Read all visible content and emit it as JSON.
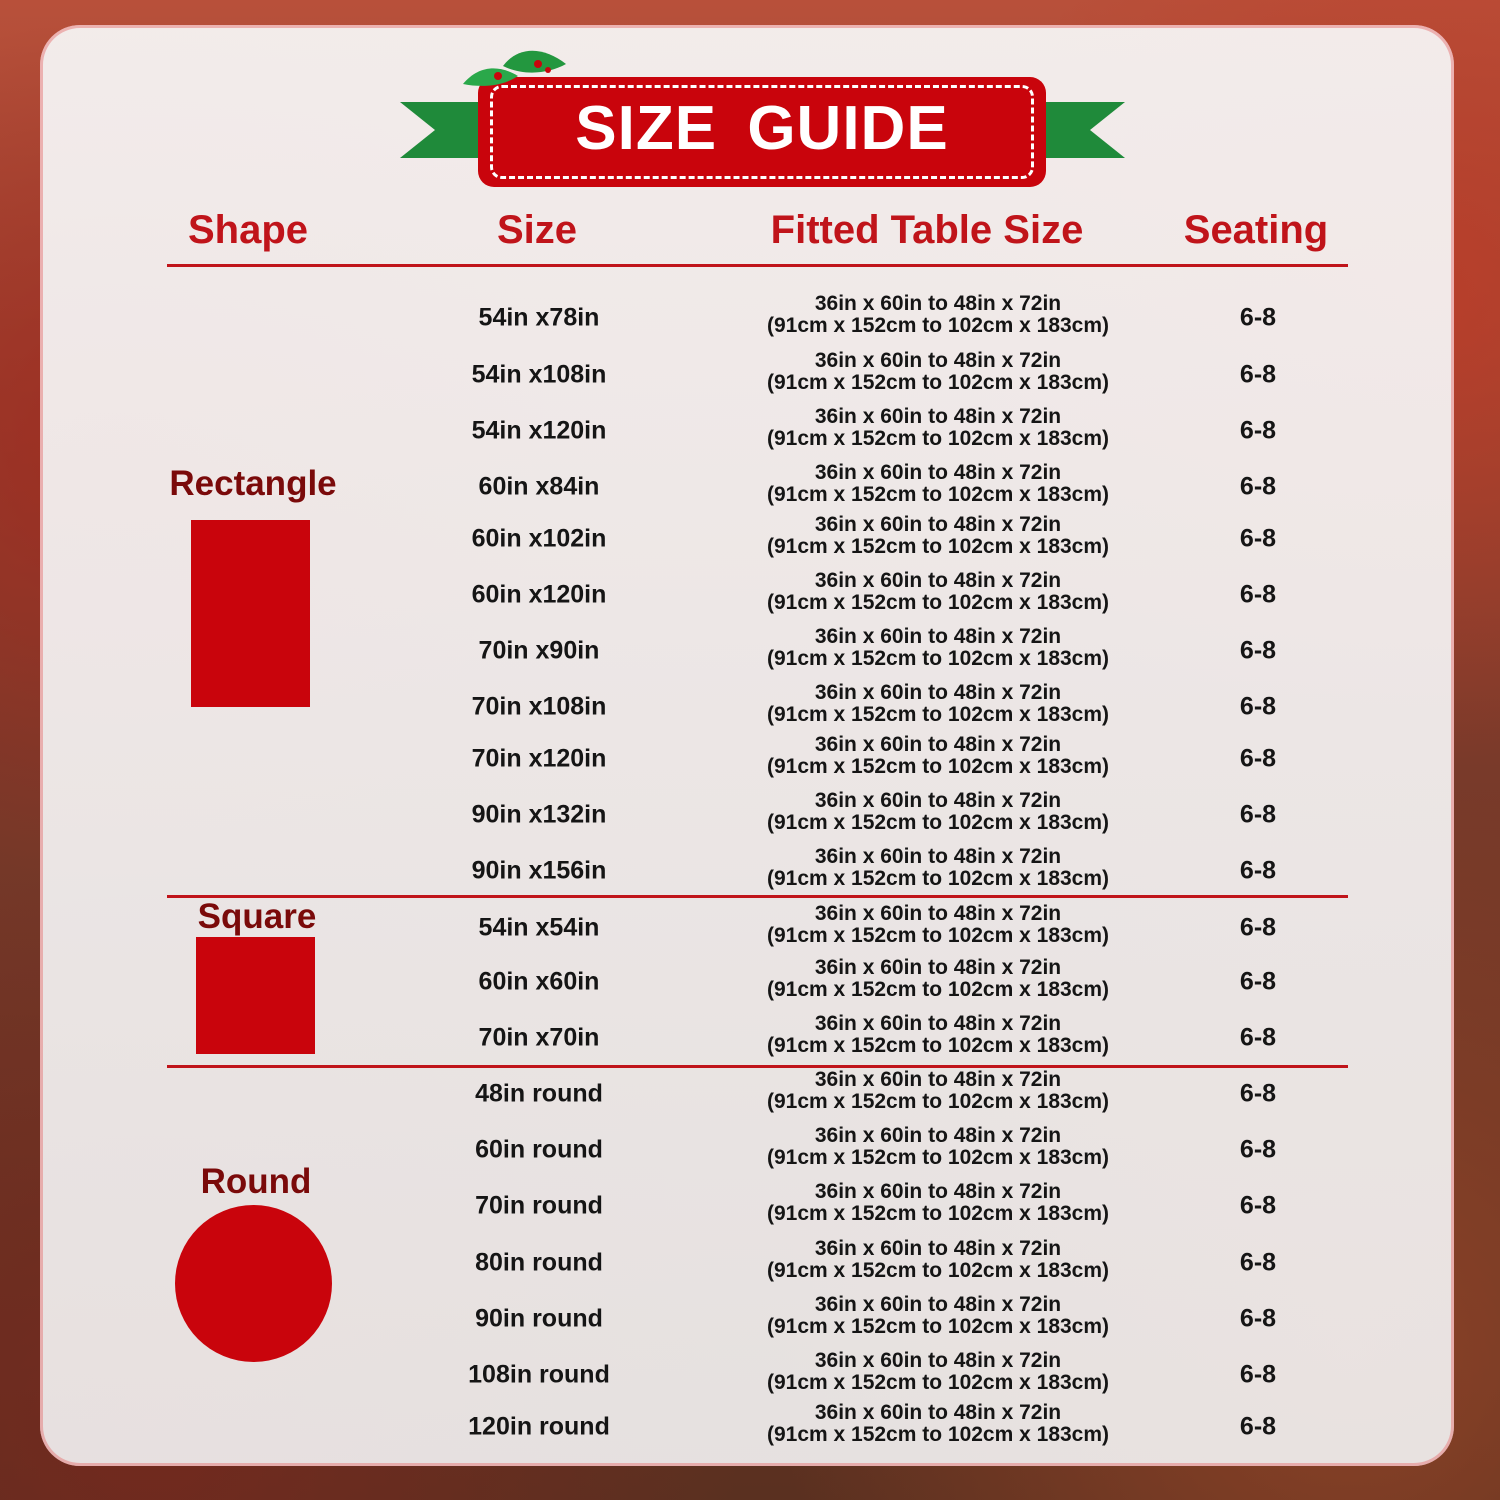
{
  "title": "SIZE GUIDE",
  "colors": {
    "accent_red": "#c9040c",
    "ribbon_green": "#1f8a3a",
    "header_red": "#c0141a",
    "shape_label": "#7a0a0a"
  },
  "headers": {
    "shape": "Shape",
    "size": "Size",
    "fitted": "Fitted Table Size",
    "seating": "Seating"
  },
  "groups": [
    {
      "shape": "Rectangle",
      "icon": "rectangle",
      "rows": [
        {
          "size": "54in x78in",
          "fitted_in": "36in x 60in to 48in x 72in",
          "fitted_cm": "(91cm x 152cm to 102cm x 183cm)",
          "seating": "6-8"
        },
        {
          "size": "54in x108in",
          "fitted_in": "36in x 60in to 48in x 72in",
          "fitted_cm": "(91cm x 152cm to 102cm x 183cm)",
          "seating": "6-8"
        },
        {
          "size": "54in x120in",
          "fitted_in": "36in x 60in to 48in x 72in",
          "fitted_cm": "(91cm x 152cm to 102cm x 183cm)",
          "seating": "6-8"
        },
        {
          "size": "60in x84in",
          "fitted_in": "36in x 60in to 48in x 72in",
          "fitted_cm": "(91cm x 152cm to 102cm x 183cm)",
          "seating": "6-8"
        },
        {
          "size": "60in x102in",
          "fitted_in": "36in x 60in to 48in x 72in",
          "fitted_cm": "(91cm x 152cm to 102cm x 183cm)",
          "seating": "6-8"
        },
        {
          "size": "60in x120in",
          "fitted_in": "36in x 60in to 48in x 72in",
          "fitted_cm": "(91cm x 152cm to 102cm x 183cm)",
          "seating": "6-8"
        },
        {
          "size": "70in x90in",
          "fitted_in": "36in x 60in to 48in x 72in",
          "fitted_cm": "(91cm x 152cm to 102cm x 183cm)",
          "seating": "6-8"
        },
        {
          "size": "70in x108in",
          "fitted_in": "36in x 60in to 48in x 72in",
          "fitted_cm": "(91cm x 152cm to 102cm x 183cm)",
          "seating": "6-8"
        },
        {
          "size": "70in x120in",
          "fitted_in": "36in x 60in to 48in x 72in",
          "fitted_cm": "(91cm x 152cm to 102cm x 183cm)",
          "seating": "6-8"
        },
        {
          "size": "90in x132in",
          "fitted_in": "36in x 60in to 48in x 72in",
          "fitted_cm": "(91cm x 152cm to 102cm x 183cm)",
          "seating": "6-8"
        },
        {
          "size": "90in x156in",
          "fitted_in": "36in x 60in to 48in x 72in",
          "fitted_cm": "(91cm x 152cm to 102cm x 183cm)",
          "seating": "6-8"
        }
      ]
    },
    {
      "shape": "Square",
      "icon": "square",
      "rows": [
        {
          "size": "54in x54in",
          "fitted_in": "36in x 60in to 48in x 72in",
          "fitted_cm": "(91cm x 152cm to 102cm x 183cm)",
          "seating": "6-8"
        },
        {
          "size": "60in x60in",
          "fitted_in": "36in x 60in to 48in x 72in",
          "fitted_cm": "(91cm x 152cm to 102cm x 183cm)",
          "seating": "6-8"
        },
        {
          "size": "70in x70in",
          "fitted_in": "36in x 60in to 48in x 72in",
          "fitted_cm": "(91cm x 152cm to 102cm x 183cm)",
          "seating": "6-8"
        }
      ]
    },
    {
      "shape": "Round",
      "icon": "circle",
      "rows": [
        {
          "size": "48in round",
          "fitted_in": "36in x 60in to 48in x 72in",
          "fitted_cm": "(91cm x 152cm to 102cm x 183cm)",
          "seating": "6-8"
        },
        {
          "size": "60in round",
          "fitted_in": "36in x 60in to 48in x 72in",
          "fitted_cm": "(91cm x 152cm to 102cm x 183cm)",
          "seating": "6-8"
        },
        {
          "size": "70in round",
          "fitted_in": "36in x 60in to 48in x 72in",
          "fitted_cm": "(91cm x 152cm to 102cm x 183cm)",
          "seating": "6-8"
        },
        {
          "size": "80in round",
          "fitted_in": "36in x 60in to 48in x 72in",
          "fitted_cm": "(91cm x 152cm to 102cm x 183cm)",
          "seating": "6-8"
        },
        {
          "size": "90in round",
          "fitted_in": "36in x 60in to 48in x 72in",
          "fitted_cm": "(91cm x 152cm to 102cm x 183cm)",
          "seating": "6-8"
        },
        {
          "size": "108in round",
          "fitted_in": "36in x 60in to 48in x 72in",
          "fitted_cm": "(91cm x 152cm to 102cm x 183cm)",
          "seating": "6-8"
        },
        {
          "size": "120in round",
          "fitted_in": "36in x 60in to 48in x 72in",
          "fitted_cm": "(91cm x 152cm to 102cm x 183cm)",
          "seating": "6-8"
        }
      ]
    }
  ]
}
